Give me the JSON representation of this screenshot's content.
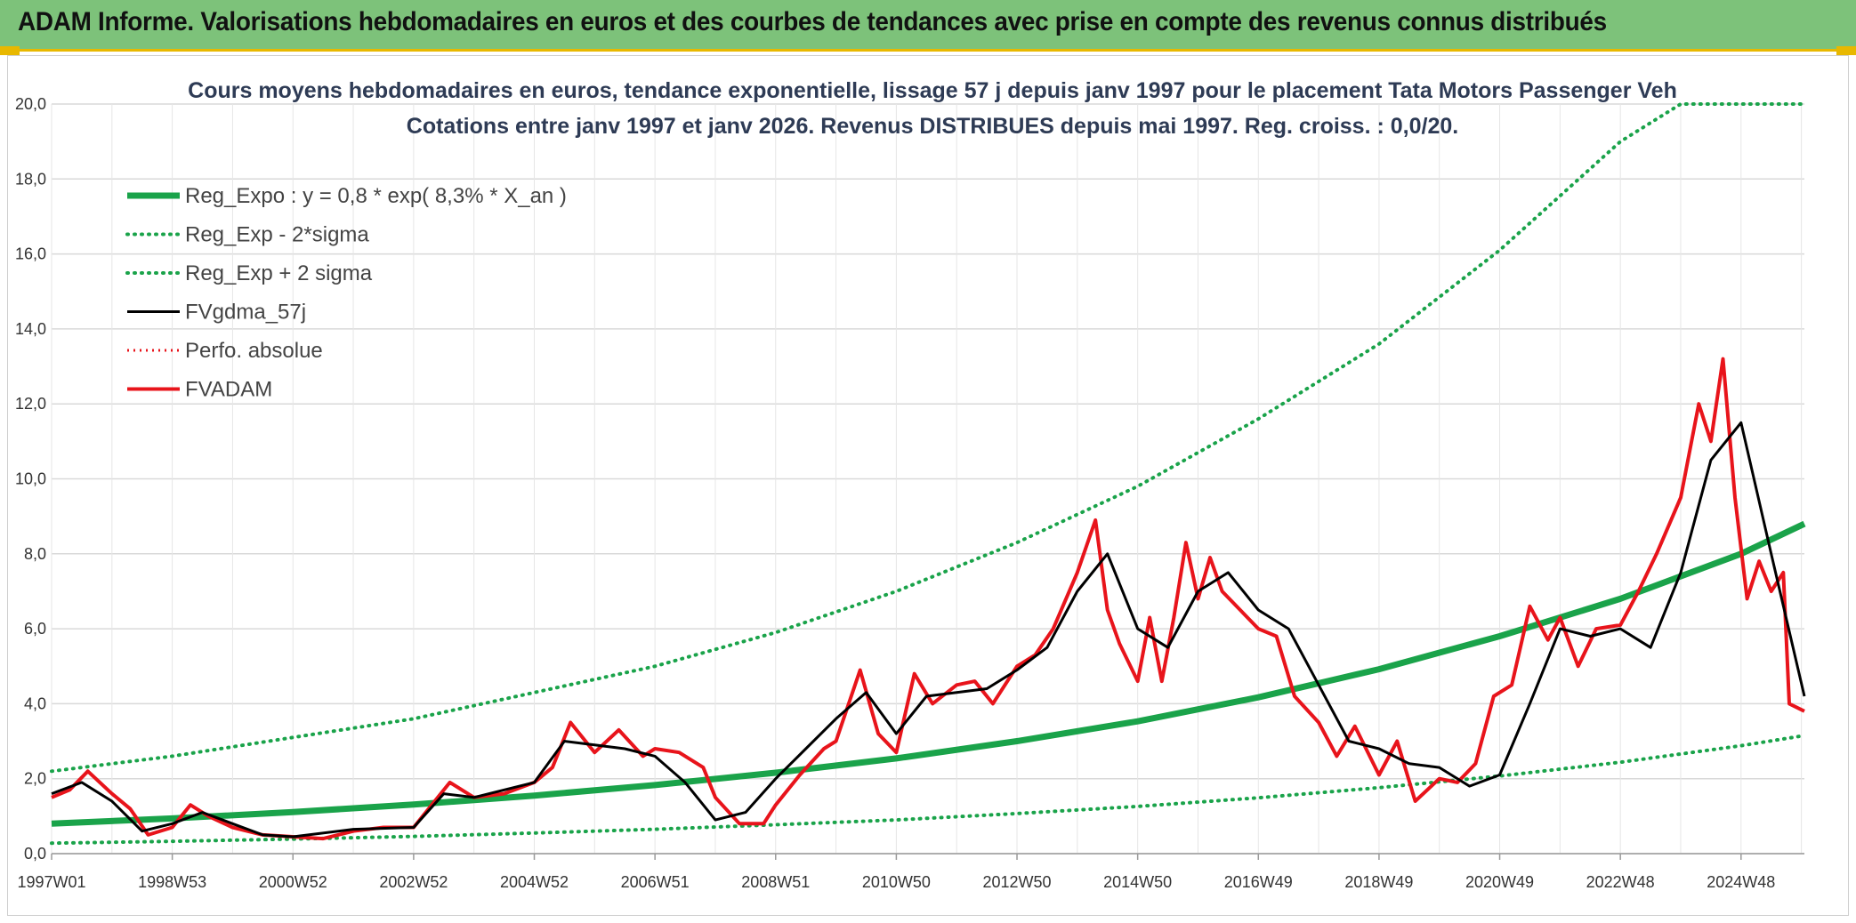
{
  "banner": {
    "title": "ADAM Informe. Valorisations hebdomadaires en euros et des courbes de tendances avec prise en compte des revenus connus distribués"
  },
  "colors": {
    "banner_bg": "#7dc27a",
    "accent": "#e8b800",
    "trend": "#1aa34a",
    "smooth": "#000000",
    "price": "#e8141b",
    "perf": "#e8141b",
    "grid": "#d9d9d9"
  },
  "chart_data": {
    "type": "line",
    "title": "Cours moyens hebdomadaires en euros, tendance exponentielle, lissage 57 j depuis janv 1997 pour le placement Tata Motors Passenger Veh",
    "subtitle": "Cotations entre janv 1997 et janv 2026. Revenus DISTRIBUES depuis mai 1997. Reg. croiss. : 0,0/20.",
    "xlabel": "",
    "ylabel": "",
    "ylim": [
      0,
      20
    ],
    "xlim": [
      1997.0,
      2026.05
    ],
    "grid": true,
    "legend_position": "top-left",
    "y_ticks": [
      "0,0",
      "2,0",
      "4,0",
      "6,0",
      "8,0",
      "10,0",
      "12,0",
      "14,0",
      "16,0",
      "18,0",
      "20,0"
    ],
    "x_ticks": [
      {
        "label": "1997W01",
        "t": 1997.0
      },
      {
        "label": "1998W53",
        "t": 1999.0
      },
      {
        "label": "2000W52",
        "t": 2001.0
      },
      {
        "label": "2002W52",
        "t": 2003.0
      },
      {
        "label": "2004W52",
        "t": 2005.0
      },
      {
        "label": "2006W51",
        "t": 2007.0
      },
      {
        "label": "2008W51",
        "t": 2009.0
      },
      {
        "label": "2010W50",
        "t": 2011.0
      },
      {
        "label": "2012W50",
        "t": 2013.0
      },
      {
        "label": "2014W50",
        "t": 2015.0
      },
      {
        "label": "2016W49",
        "t": 2017.0
      },
      {
        "label": "2018W49",
        "t": 2019.0
      },
      {
        "label": "2020W49",
        "t": 2021.0
      },
      {
        "label": "2022W48",
        "t": 2023.0
      },
      {
        "label": "2024W48",
        "t": 2025.0
      }
    ],
    "series": [
      {
        "name": "Reg_Expo : y = 0,8 * exp( 8,3% *  X_an )",
        "style": "trend",
        "x": [
          1997.0,
          1999.0,
          2001.0,
          2003.0,
          2005.0,
          2007.0,
          2009.0,
          2011.0,
          2013.0,
          2015.0,
          2017.0,
          2019.0,
          2021.0,
          2023.0,
          2025.0,
          2026.05
        ],
        "values": [
          0.8,
          0.94,
          1.11,
          1.31,
          1.55,
          1.83,
          2.16,
          2.54,
          3.0,
          3.53,
          4.17,
          4.92,
          5.8,
          6.8,
          8.0,
          8.8
        ]
      },
      {
        "name": "Reg_Exp - 2*sigma",
        "style": "dotted-green",
        "x": [
          1997.0,
          1999.0,
          2001.0,
          2003.0,
          2005.0,
          2007.0,
          2009.0,
          2011.0,
          2013.0,
          2015.0,
          2017.0,
          2019.0,
          2021.0,
          2023.0,
          2025.0,
          2026.05
        ],
        "values": [
          0.28,
          0.33,
          0.39,
          0.46,
          0.55,
          0.65,
          0.77,
          0.9,
          1.07,
          1.26,
          1.49,
          1.76,
          2.07,
          2.44,
          2.88,
          3.15
        ]
      },
      {
        "name": "Reg_Exp + 2 sigma",
        "style": "dotted-green",
        "x": [
          1997.0,
          1999.0,
          2001.0,
          2003.0,
          2005.0,
          2007.0,
          2009.0,
          2011.0,
          2013.0,
          2015.0,
          2017.0,
          2019.0,
          2021.0,
          2023.0,
          2024.0,
          2026.05
        ],
        "values": [
          2.2,
          2.6,
          3.1,
          3.6,
          4.3,
          5.0,
          5.9,
          7.0,
          8.3,
          9.8,
          11.6,
          13.6,
          16.1,
          19.0,
          20.0,
          20.0
        ]
      },
      {
        "name": "FVgdma_57j",
        "style": "smooth",
        "x": [
          1997.0,
          1997.5,
          1998.0,
          1998.5,
          1999.0,
          1999.5,
          2000.0,
          2000.5,
          2001.0,
          2002.0,
          2003.0,
          2003.5,
          2004.0,
          2005.0,
          2005.5,
          2006.0,
          2006.5,
          2007.0,
          2007.5,
          2008.0,
          2008.5,
          2009.0,
          2009.5,
          2010.0,
          2010.5,
          2011.0,
          2011.5,
          2012.0,
          2012.5,
          2013.0,
          2013.5,
          2014.0,
          2014.5,
          2015.0,
          2015.5,
          2016.0,
          2016.5,
          2017.0,
          2017.5,
          2018.0,
          2018.5,
          2019.0,
          2019.5,
          2020.0,
          2020.5,
          2021.0,
          2021.5,
          2022.0,
          2022.5,
          2023.0,
          2023.5,
          2024.0,
          2024.5,
          2025.0,
          2025.5,
          2026.05
        ],
        "values": [
          1.6,
          1.9,
          1.4,
          0.6,
          0.8,
          1.1,
          0.8,
          0.5,
          0.45,
          0.65,
          0.7,
          1.6,
          1.5,
          1.9,
          3.0,
          2.9,
          2.8,
          2.6,
          1.9,
          0.9,
          1.1,
          2.0,
          2.8,
          3.6,
          4.3,
          3.2,
          4.2,
          4.3,
          4.4,
          4.9,
          5.5,
          7.0,
          8.0,
          6.0,
          5.5,
          7.0,
          7.5,
          6.5,
          6.0,
          4.5,
          3.0,
          2.8,
          2.4,
          2.3,
          1.8,
          2.1,
          4.0,
          6.0,
          5.8,
          6.0,
          5.5,
          7.5,
          10.5,
          11.5,
          8.0,
          4.2
        ]
      },
      {
        "name": "Perfo. absolue",
        "style": "dotted-red",
        "x": [],
        "values": []
      },
      {
        "name": "FVADAM",
        "style": "price",
        "x": [
          1997.0,
          1997.3,
          1997.6,
          1998.0,
          1998.3,
          1998.6,
          1999.0,
          1999.3,
          1999.6,
          2000.0,
          2000.5,
          2001.0,
          2001.5,
          2002.0,
          2002.5,
          2003.0,
          2003.3,
          2003.6,
          2004.0,
          2004.5,
          2005.0,
          2005.3,
          2005.6,
          2006.0,
          2006.4,
          2006.8,
          2007.0,
          2007.4,
          2007.8,
          2008.0,
          2008.4,
          2008.8,
          2009.0,
          2009.4,
          2009.8,
          2010.0,
          2010.4,
          2010.7,
          2011.0,
          2011.3,
          2011.6,
          2012.0,
          2012.3,
          2012.6,
          2013.0,
          2013.3,
          2013.6,
          2014.0,
          2014.3,
          2014.5,
          2014.7,
          2015.0,
          2015.2,
          2015.4,
          2015.6,
          2015.8,
          2016.0,
          2016.2,
          2016.4,
          2016.7,
          2017.0,
          2017.3,
          2017.6,
          2018.0,
          2018.3,
          2018.6,
          2019.0,
          2019.3,
          2019.6,
          2020.0,
          2020.3,
          2020.6,
          2020.9,
          2021.2,
          2021.5,
          2021.8,
          2022.0,
          2022.3,
          2022.6,
          2023.0,
          2023.3,
          2023.6,
          2024.0,
          2024.3,
          2024.5,
          2024.7,
          2024.9,
          2025.1,
          2025.3,
          2025.5,
          2025.7,
          2025.8,
          2026.05
        ],
        "values": [
          1.5,
          1.7,
          2.2,
          1.6,
          1.2,
          0.5,
          0.7,
          1.3,
          1.0,
          0.7,
          0.5,
          0.45,
          0.4,
          0.6,
          0.7,
          0.7,
          1.3,
          1.9,
          1.5,
          1.6,
          1.9,
          2.3,
          3.5,
          2.7,
          3.3,
          2.6,
          2.8,
          2.7,
          2.3,
          1.5,
          0.8,
          0.8,
          1.3,
          2.1,
          2.8,
          3.0,
          4.9,
          3.2,
          2.7,
          4.8,
          4.0,
          4.5,
          4.6,
          4.0,
          5.0,
          5.3,
          6.0,
          7.5,
          8.9,
          6.5,
          5.6,
          4.6,
          6.3,
          4.6,
          6.3,
          8.3,
          6.8,
          7.9,
          7.0,
          6.5,
          6.0,
          5.8,
          4.2,
          3.5,
          2.6,
          3.4,
          2.1,
          3.0,
          1.4,
          2.0,
          1.9,
          2.4,
          4.2,
          4.5,
          6.6,
          5.7,
          6.3,
          5.0,
          6.0,
          6.1,
          7.0,
          8.0,
          9.5,
          12.0,
          11.0,
          13.2,
          9.5,
          6.8,
          7.8,
          7.0,
          7.5,
          4.0,
          3.8
        ]
      }
    ]
  }
}
